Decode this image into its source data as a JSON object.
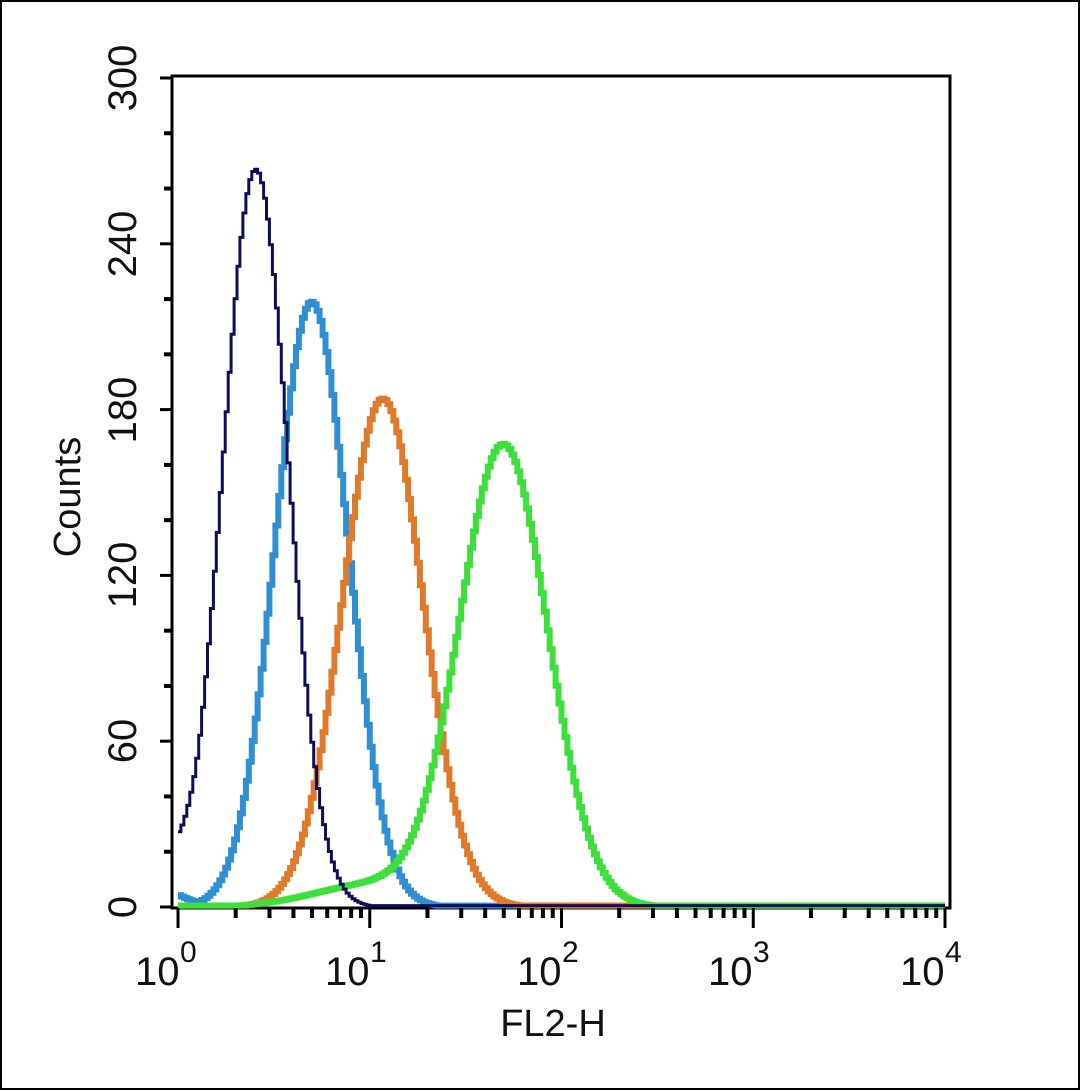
{
  "chart_data": {
    "type": "line",
    "subtype": "flow-cytometry-histogram-overlay",
    "title": "",
    "xlabel": "FL2-H",
    "ylabel": "Counts",
    "xscale": "log",
    "xlim": [
      1,
      10000
    ],
    "ylim": [
      0,
      300
    ],
    "grid": false,
    "legend": null,
    "x_ticks": [
      {
        "value": 1,
        "base": "10",
        "exp": "0"
      },
      {
        "value": 10,
        "base": "10",
        "exp": "1"
      },
      {
        "value": 100,
        "base": "10",
        "exp": "2"
      },
      {
        "value": 1000,
        "base": "10",
        "exp": "3"
      },
      {
        "value": 10000,
        "base": "10",
        "exp": "4"
      }
    ],
    "y_ticks": [
      "0",
      "60",
      "120",
      "180",
      "240",
      "300"
    ],
    "series": [
      {
        "name": "navy",
        "color": "#0d0d5a",
        "stroke_width": 3,
        "peak_x": 2.5,
        "peak_count": 267,
        "log_sigma": 0.17,
        "tail_left": 10
      },
      {
        "name": "blue",
        "color": "#2f8fd4",
        "stroke_width": 6,
        "peak_x": 4.9,
        "peak_count": 219,
        "log_sigma": 0.19,
        "tail_left": 4
      },
      {
        "name": "orange",
        "color": "#e07a2a",
        "stroke_width": 6,
        "peak_x": 11.5,
        "peak_count": 184,
        "log_sigma": 0.21,
        "tail_left": 0
      },
      {
        "name": "green",
        "color": "#3de03a",
        "stroke_width": 6,
        "peak_x": 49,
        "peak_count": 167,
        "log_sigma": 0.23,
        "tail_left": 0,
        "shoulder": {
          "x": 10,
          "count": 8
        }
      }
    ]
  },
  "axes": {
    "x_title": "FL2-H",
    "y_title": "Counts",
    "y_tick_labels": [
      "0",
      "60",
      "120",
      "180",
      "240",
      "300"
    ],
    "x_tick_bases": [
      "10",
      "10",
      "10",
      "10",
      "10"
    ],
    "x_tick_exps": [
      "0",
      "1",
      "2",
      "3",
      "4"
    ]
  }
}
